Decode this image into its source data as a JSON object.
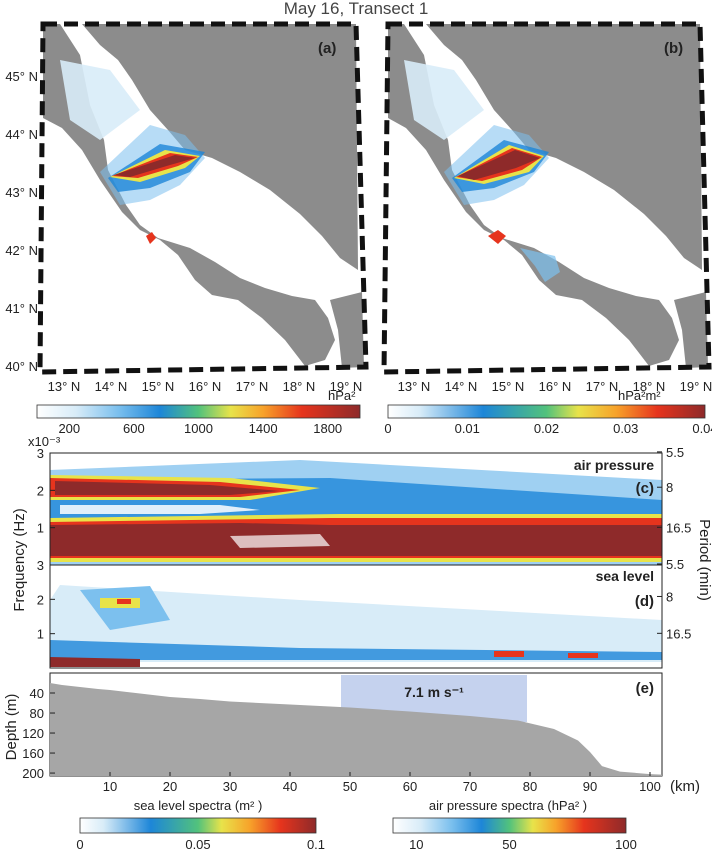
{
  "title": "May 16, Transect 1",
  "colors": {
    "land": "#8c8c8c",
    "bathymetry": "#a6a6a6",
    "wind_box": "#c5d2ee",
    "axis": "#222222"
  },
  "maps": {
    "lat_ticks": [
      "45° N",
      "44° N",
      "43° N",
      "42° N",
      "41° N",
      "40° N"
    ],
    "lon_ticks": [
      "13° N",
      "14° N",
      "15° N",
      "16° N",
      "17° N",
      "18° N",
      "19° N"
    ],
    "panel_a": {
      "label": "(a)",
      "colorbar": {
        "unit": "hPa²",
        "range": [
          0,
          2000
        ],
        "ticks": [
          "200",
          "600",
          "1000",
          "1400",
          "1800"
        ]
      }
    },
    "panel_b": {
      "label": "(b)",
      "colorbar": {
        "unit": "hPa²m²",
        "range": [
          0,
          0.04
        ],
        "ticks": [
          "0",
          "0.01",
          "0.02",
          "0.03",
          "0.04"
        ]
      }
    }
  },
  "chart_data": [
    {
      "type": "heatmap",
      "panel": "(c)",
      "name": "air pressure",
      "ylabel": "Frequency (Hz)",
      "ylabel_right": "Period (min)",
      "y_multiplier": "x10⁻³",
      "yticks": [
        "3",
        "2",
        "1"
      ],
      "right_ticks": [
        "5.5",
        "8",
        "16.5"
      ],
      "xlim": [
        0,
        102
      ],
      "ylim": [
        0,
        3
      ]
    },
    {
      "type": "heatmap",
      "panel": "(d)",
      "name": "sea level",
      "yticks": [
        "3",
        "2",
        "1"
      ],
      "right_ticks": [
        "5.5",
        "8",
        "16.5"
      ],
      "xlim": [
        0,
        102
      ],
      "ylim": [
        0,
        3
      ]
    },
    {
      "type": "area",
      "panel": "(e)",
      "ylabel": "Depth (m)",
      "xlabel": "(km)",
      "xticks": [
        "10",
        "20",
        "30",
        "40",
        "50",
        "60",
        "70",
        "80",
        "90",
        "100"
      ],
      "yticks": [
        "40",
        "80",
        "120",
        "160",
        "200"
      ],
      "ylim": [
        200,
        0
      ],
      "xlim": [
        0,
        102
      ],
      "x": [
        0,
        2,
        5,
        8,
        10,
        15,
        20,
        25,
        30,
        40,
        50,
        60,
        70,
        78,
        84,
        88,
        90,
        92,
        95,
        100,
        102
      ],
      "depth": [
        20,
        24,
        28,
        32,
        34,
        41,
        48,
        52,
        57,
        63,
        69,
        77,
        86,
        95,
        112,
        135,
        158,
        186,
        197,
        202,
        203
      ],
      "wind_window": {
        "x_range": [
          48.5,
          79.5
        ],
        "depth_range": [
          20,
          98
        ],
        "label": "7.1 m s⁻¹"
      }
    }
  ],
  "bottom_colorbars": {
    "sea_level": {
      "label": "sea level spectra (m² )",
      "range": [
        0,
        0.1
      ],
      "ticks": [
        "0",
        "0.05",
        "0.1"
      ]
    },
    "air_pressure": {
      "label": "air pressure spectra (hPa² )",
      "range": [
        0,
        100
      ],
      "ticks": [
        "10",
        "50",
        "100"
      ]
    }
  }
}
